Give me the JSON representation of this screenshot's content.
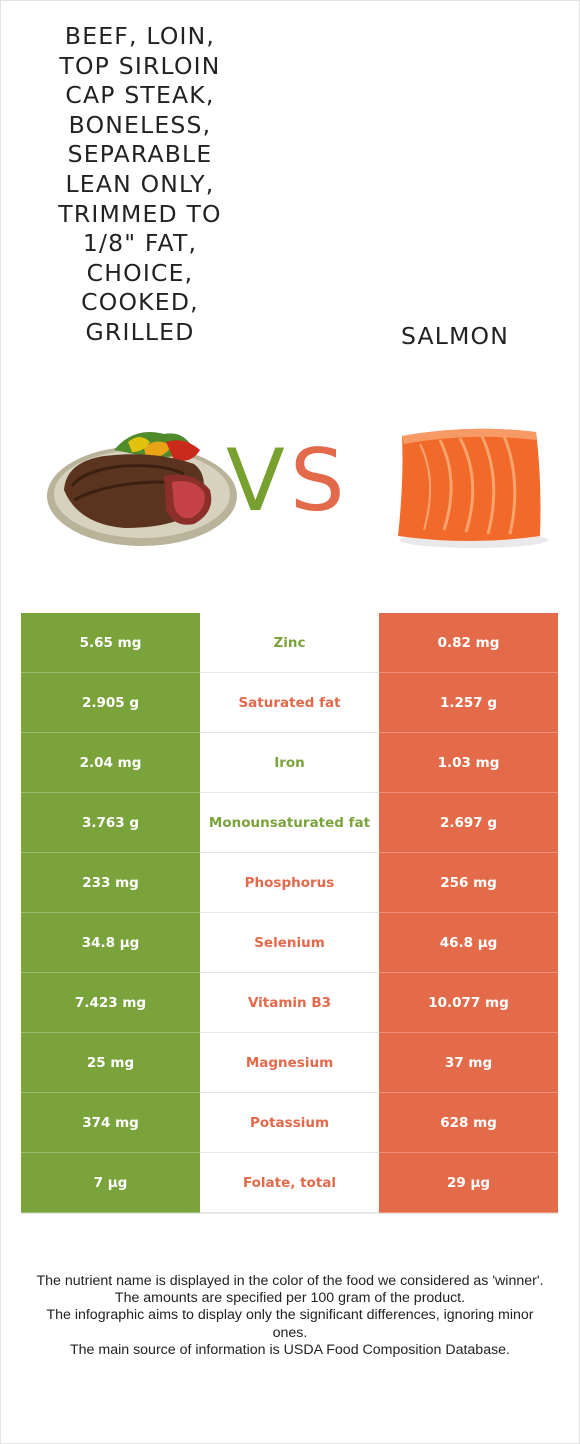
{
  "food_left": {
    "name": "Beef, loin, top sirloin cap steak, boneless, separable lean only, trimmed to 1/8\" fat, choice, cooked, grilled"
  },
  "food_right": {
    "name": "Salmon"
  },
  "vs": {
    "v": "V",
    "s": "S"
  },
  "colors": {
    "left": "#7aa33b",
    "right": "#e46b4a"
  },
  "rows": [
    {
      "left": "5.65 mg",
      "nutrient": "Zinc",
      "right": "0.82 mg",
      "winner": "left"
    },
    {
      "left": "2.905 g",
      "nutrient": "Saturated fat",
      "right": "1.257 g",
      "winner": "right"
    },
    {
      "left": "2.04 mg",
      "nutrient": "Iron",
      "right": "1.03 mg",
      "winner": "left"
    },
    {
      "left": "3.763 g",
      "nutrient": "Monounsaturated fat",
      "right": "2.697 g",
      "winner": "left"
    },
    {
      "left": "233 mg",
      "nutrient": "Phosphorus",
      "right": "256 mg",
      "winner": "right"
    },
    {
      "left": "34.8 µg",
      "nutrient": "Selenium",
      "right": "46.8 µg",
      "winner": "right"
    },
    {
      "left": "7.423 mg",
      "nutrient": "Vitamin B3",
      "right": "10.077 mg",
      "winner": "right"
    },
    {
      "left": "25 mg",
      "nutrient": "Magnesium",
      "right": "37 mg",
      "winner": "right"
    },
    {
      "left": "374 mg",
      "nutrient": "Potassium",
      "right": "628 mg",
      "winner": "right"
    },
    {
      "left": "7 µg",
      "nutrient": "Folate, total",
      "right": "29 µg",
      "winner": "right"
    }
  ],
  "footer": {
    "line1": "The nutrient name is displayed in the color of the food we considered as 'winner'.",
    "line2": "The amounts are specified per 100 gram of the product.",
    "line3": "The infographic aims to display only the significant differences, ignoring minor ones.",
    "line4": "The main source of information is USDA Food Composition Database."
  }
}
